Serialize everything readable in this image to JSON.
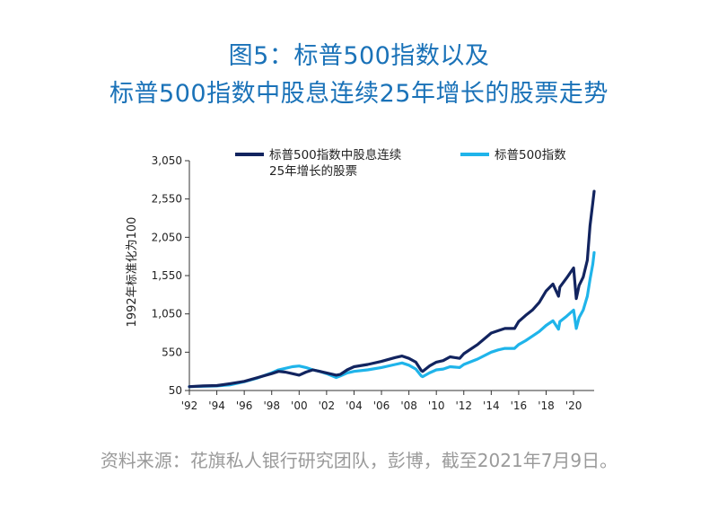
{
  "title_line1": "图5：标普500指数以及",
  "title_line2": "标普500指数中股息连续25年增长的股票走势",
  "source": "资料来源：花旗私人银行研究团队，彭博，截至2021年7月9日。",
  "colors": {
    "title": "#1a72b8",
    "dividend": "#12245f",
    "sp500": "#1fb4ea",
    "source": "#9a9a9a"
  },
  "chart_data": {
    "type": "line",
    "title": "",
    "ylabel": "1992年标准化为100",
    "ylim": [
      50,
      3050
    ],
    "yticks": [
      {
        "value": 50,
        "label": "50"
      },
      {
        "value": 550,
        "label": "550"
      },
      {
        "value": 1050,
        "label": "1,050"
      },
      {
        "value": 1550,
        "label": "1,550"
      },
      {
        "value": 2050,
        "label": "2,050"
      },
      {
        "value": 2550,
        "label": "2,550"
      },
      {
        "value": 3050,
        "label": "3,050"
      }
    ],
    "xlim": [
      1992,
      2021.5
    ],
    "xticks": [
      {
        "value": 1992,
        "label": "'92"
      },
      {
        "value": 1994,
        "label": "'94"
      },
      {
        "value": 1996,
        "label": "'96"
      },
      {
        "value": 1998,
        "label": "'98"
      },
      {
        "value": 2000,
        "label": "'00"
      },
      {
        "value": 2002,
        "label": "'02"
      },
      {
        "value": 2004,
        "label": "'04"
      },
      {
        "value": 2006,
        "label": "'06"
      },
      {
        "value": 2008,
        "label": "'08"
      },
      {
        "value": 2010,
        "label": "'10"
      },
      {
        "value": 2012,
        "label": "'12"
      },
      {
        "value": 2014,
        "label": "'14"
      },
      {
        "value": 2016,
        "label": "'16"
      },
      {
        "value": 2018,
        "label": "'18"
      },
      {
        "value": 2020,
        "label": "'20"
      }
    ],
    "legend_position": "top",
    "series": [
      {
        "name_lines": [
          "标普500指数中股息连续",
          "25年增长的股票"
        ],
        "color": "#12245f",
        "points": [
          [
            1992,
            100
          ],
          [
            1993,
            110
          ],
          [
            1994,
            115
          ],
          [
            1995,
            140
          ],
          [
            1996,
            170
          ],
          [
            1997,
            220
          ],
          [
            1998,
            270
          ],
          [
            1998.5,
            300
          ],
          [
            1999,
            290
          ],
          [
            1999.5,
            270
          ],
          [
            2000,
            250
          ],
          [
            2000.5,
            290
          ],
          [
            2001,
            320
          ],
          [
            2001.5,
            300
          ],
          [
            2002,
            280
          ],
          [
            2002.7,
            250
          ],
          [
            2003,
            260
          ],
          [
            2003.5,
            320
          ],
          [
            2004,
            360
          ],
          [
            2005,
            390
          ],
          [
            2006,
            430
          ],
          [
            2007,
            480
          ],
          [
            2007.5,
            500
          ],
          [
            2008,
            470
          ],
          [
            2008.5,
            420
          ],
          [
            2008.9,
            310
          ],
          [
            2009,
            300
          ],
          [
            2009.5,
            370
          ],
          [
            2010,
            420
          ],
          [
            2010.5,
            440
          ],
          [
            2011,
            490
          ],
          [
            2011.7,
            470
          ],
          [
            2012,
            530
          ],
          [
            2013,
            650
          ],
          [
            2014,
            800
          ],
          [
            2014.5,
            830
          ],
          [
            2015,
            860
          ],
          [
            2015.7,
            860
          ],
          [
            2016,
            950
          ],
          [
            2016.5,
            1030
          ],
          [
            2017,
            1100
          ],
          [
            2017.5,
            1200
          ],
          [
            2018,
            1350
          ],
          [
            2018.5,
            1440
          ],
          [
            2018.9,
            1280
          ],
          [
            2019,
            1400
          ],
          [
            2019.5,
            1520
          ],
          [
            2020,
            1650
          ],
          [
            2020.2,
            1250
          ],
          [
            2020.4,
            1420
          ],
          [
            2020.7,
            1530
          ],
          [
            2021,
            1750
          ],
          [
            2021.2,
            2200
          ],
          [
            2021.4,
            2500
          ],
          [
            2021.5,
            2650
          ]
        ]
      },
      {
        "name_lines": [
          "标普500指数"
        ],
        "color": "#1fb4ea",
        "points": [
          [
            1992,
            100
          ],
          [
            1993,
            105
          ],
          [
            1994,
            110
          ],
          [
            1995,
            125
          ],
          [
            1996,
            165
          ],
          [
            1997,
            215
          ],
          [
            1998,
            280
          ],
          [
            1998.5,
            320
          ],
          [
            1999,
            340
          ],
          [
            1999.5,
            360
          ],
          [
            2000,
            370
          ],
          [
            2000.5,
            350
          ],
          [
            2001,
            320
          ],
          [
            2001.5,
            300
          ],
          [
            2002,
            270
          ],
          [
            2002.7,
            220
          ],
          [
            2003,
            240
          ],
          [
            2003.5,
            280
          ],
          [
            2004,
            300
          ],
          [
            2005,
            320
          ],
          [
            2006,
            350
          ],
          [
            2007,
            390
          ],
          [
            2007.5,
            410
          ],
          [
            2008,
            380
          ],
          [
            2008.5,
            330
          ],
          [
            2008.9,
            240
          ],
          [
            2009,
            230
          ],
          [
            2009.5,
            280
          ],
          [
            2010,
            320
          ],
          [
            2010.5,
            330
          ],
          [
            2011,
            360
          ],
          [
            2011.7,
            350
          ],
          [
            2012,
            390
          ],
          [
            2013,
            460
          ],
          [
            2014,
            550
          ],
          [
            2014.5,
            580
          ],
          [
            2015,
            600
          ],
          [
            2015.7,
            600
          ],
          [
            2016,
            650
          ],
          [
            2016.5,
            700
          ],
          [
            2017,
            760
          ],
          [
            2017.5,
            820
          ],
          [
            2018,
            900
          ],
          [
            2018.5,
            960
          ],
          [
            2018.9,
            850
          ],
          [
            2019,
            950
          ],
          [
            2019.5,
            1020
          ],
          [
            2020,
            1100
          ],
          [
            2020.2,
            860
          ],
          [
            2020.4,
            1000
          ],
          [
            2020.7,
            1100
          ],
          [
            2021,
            1280
          ],
          [
            2021.2,
            1500
          ],
          [
            2021.4,
            1700
          ],
          [
            2021.5,
            1850
          ]
        ]
      }
    ]
  }
}
